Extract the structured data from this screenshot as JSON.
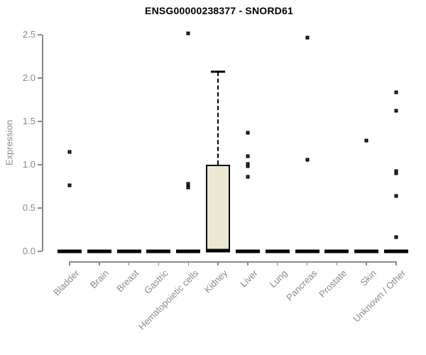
{
  "chart_data": {
    "type": "boxplot",
    "title": "ENSG00000238377 - SNORD61",
    "xlabel": "",
    "ylabel": "Expression",
    "ylim": [
      0,
      2.55
    ],
    "yticks": [
      0.0,
      0.5,
      1.0,
      1.5,
      2.0,
      2.5
    ],
    "grid": "off",
    "legend": "none",
    "categories": [
      "Bladder",
      "Brain",
      "Breast",
      "Gastric",
      "Hematopoietic cells",
      "Kidney",
      "Liver",
      "Lung",
      "Pancreas",
      "Prostate",
      "Skin",
      "Unknown / Other"
    ],
    "boxes": [
      {
        "category": "Bladder",
        "q1": 0,
        "median": 0,
        "q3": 0,
        "whisker_low": 0,
        "whisker_high": 0,
        "outliers": [
          1.15,
          0.76
        ]
      },
      {
        "category": "Brain",
        "q1": 0,
        "median": 0,
        "q3": 0,
        "whisker_low": 0,
        "whisker_high": 0,
        "outliers": []
      },
      {
        "category": "Breast",
        "q1": 0,
        "median": 0,
        "q3": 0,
        "whisker_low": 0,
        "whisker_high": 0,
        "outliers": []
      },
      {
        "category": "Gastric",
        "q1": 0,
        "median": 0,
        "q3": 0,
        "whisker_low": 0,
        "whisker_high": 0,
        "outliers": []
      },
      {
        "category": "Hematopoietic cells",
        "q1": 0,
        "median": 0,
        "q3": 0,
        "whisker_low": 0,
        "whisker_high": 0,
        "outliers": [
          2.52,
          0.78,
          0.74
        ]
      },
      {
        "category": "Kidney",
        "q1": 0,
        "median": 0.01,
        "q3": 1.0,
        "whisker_low": 0,
        "whisker_high": 2.07,
        "outliers": []
      },
      {
        "category": "Liver",
        "q1": 0,
        "median": 0,
        "q3": 0,
        "whisker_low": 0,
        "whisker_high": 0,
        "outliers": [
          1.37,
          1.1,
          1.01,
          0.98,
          0.86
        ]
      },
      {
        "category": "Lung",
        "q1": 0,
        "median": 0,
        "q3": 0,
        "whisker_low": 0,
        "whisker_high": 0,
        "outliers": []
      },
      {
        "category": "Pancreas",
        "q1": 0,
        "median": 0,
        "q3": 0,
        "whisker_low": 0,
        "whisker_high": 0,
        "outliers": [
          2.47,
          1.06
        ]
      },
      {
        "category": "Prostate",
        "q1": 0,
        "median": 0,
        "q3": 0,
        "whisker_low": 0,
        "whisker_high": 0,
        "outliers": []
      },
      {
        "category": "Skin",
        "q1": 0,
        "median": 0,
        "q3": 0,
        "whisker_low": 0,
        "whisker_high": 0,
        "outliers": [
          1.28
        ]
      },
      {
        "category": "Unknown / Other",
        "q1": 0,
        "median": 0,
        "q3": 0,
        "whisker_low": 0,
        "whisker_high": 0,
        "outliers": [
          1.84,
          1.62,
          0.93,
          0.9,
          0.64,
          0.16
        ]
      }
    ],
    "colors": {
      "background": "#ffffff",
      "box_fill": "#ece7d0",
      "box_border": "#000000",
      "median": "#000000",
      "axis": "#8a8a8a",
      "tick_label": "#8a8a8a",
      "title": "#000000",
      "point_border": "#000000",
      "point_fill": "#ffffff"
    }
  }
}
